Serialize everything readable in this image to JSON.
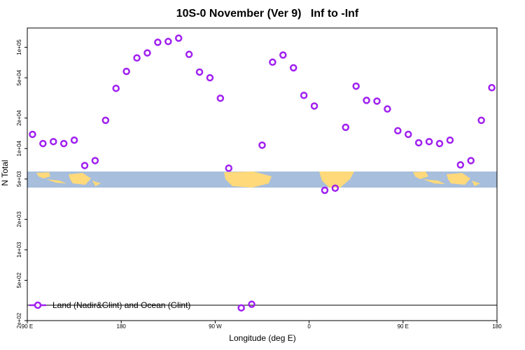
{
  "chart_data": {
    "type": "scatter",
    "title": "10S-0 November (Ver 9)   Inf to -Inf",
    "x_label": "Longitude (deg E)",
    "y_label": "N Total",
    "log_y": true,
    "xlim": [
      90,
      540
    ],
    "ylim": [
      200,
      155000
    ],
    "xticks": [
      {
        "value": 90,
        "label": "90 E"
      },
      180,
      {
        "value": 270,
        "label": "90 W"
      },
      {
        "value": 360,
        "label": "0"
      },
      {
        "value": 450,
        "label": "90 E"
      },
      {
        "value": 540,
        "label": "180"
      }
    ],
    "yticks": [
      {
        "value": 200,
        "label": "2e+02"
      },
      {
        "value": 500,
        "label": "5e+02"
      },
      {
        "value": 1000,
        "label": "1e+03"
      },
      {
        "value": 2000,
        "label": "2e+03"
      },
      {
        "value": 5000,
        "label": "5e+03"
      },
      {
        "value": 10000,
        "label": "1e+04"
      },
      {
        "value": 20000,
        "label": "2e+04"
      },
      {
        "value": 50000,
        "label": "5e+04"
      },
      {
        "value": 100000,
        "label": "1e+05"
      }
    ],
    "legend": "bottom-left",
    "series": [
      {
        "name": "Land (Nadir&Glint) and Ocean (Glint)",
        "color": "#a020f0",
        "x": [
          95,
          105,
          115,
          125,
          135,
          145,
          155,
          165,
          175,
          185,
          195,
          205,
          215,
          225,
          235,
          245,
          255,
          265,
          275,
          283,
          295,
          305,
          315,
          325,
          335,
          345,
          355,
          365,
          375,
          385,
          395,
          405,
          415,
          425,
          435,
          445,
          455,
          465,
          475,
          485,
          495,
          505,
          515,
          525,
          535
        ],
        "values": [
          13800,
          11200,
          11700,
          11200,
          12100,
          6800,
          7600,
          19000,
          39300,
          57800,
          78500,
          88000,
          112000,
          114000,
          123000,
          85100,
          56900,
          50000,
          31400,
          6400,
          267,
          290,
          10800,
          71300,
          83800,
          62700,
          33500,
          26300,
          3870,
          4060,
          16200,
          41300,
          29900,
          29400,
          24600,
          15000,
          13800,
          11400,
          11700,
          11200,
          12100,
          6900,
          7600,
          19000,
          39900
        ]
      }
    ]
  }
}
